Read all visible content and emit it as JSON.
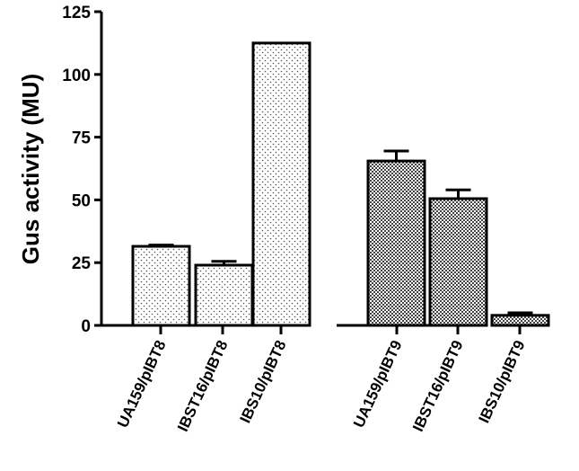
{
  "chart_data": {
    "type": "bar",
    "title": "",
    "xlabel": "",
    "ylabel": "Gus activity (MU)",
    "ylim": [
      0,
      125
    ],
    "yticks": [
      0,
      25,
      50,
      75,
      100,
      125
    ],
    "grid": false,
    "groups": [
      {
        "pattern": "dots",
        "bars": [
          {
            "category": "UA159/pIBT8",
            "value": 31.5,
            "error": 0.5
          },
          {
            "category": "IBST16/pIBT8",
            "value": 24,
            "error": 1.5
          },
          {
            "category": "IBS10/pIBT8",
            "value": 112.5,
            "error": 0
          }
        ]
      },
      {
        "pattern": "checker",
        "bars": [
          {
            "category": "UA159/pIBT9",
            "value": 65.5,
            "error": 4
          },
          {
            "category": "IBST16/pIBT9",
            "value": 50.5,
            "error": 3.5
          },
          {
            "category": "IBS10/pIBT9",
            "value": 4,
            "error": 1
          }
        ]
      }
    ]
  }
}
